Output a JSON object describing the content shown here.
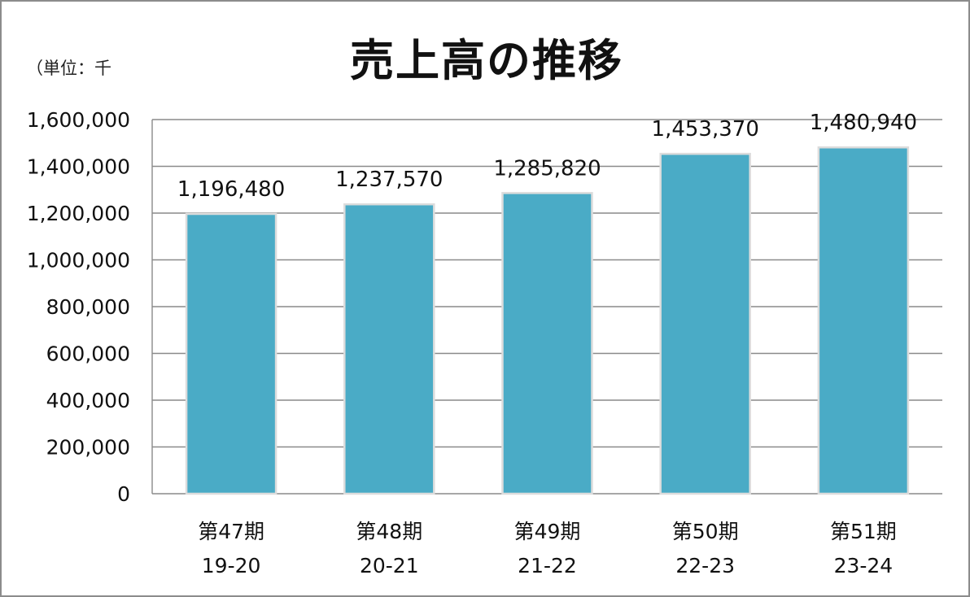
{
  "chart_data": {
    "type": "bar",
    "title": "売上高の推移",
    "unit_note": "（単位：千",
    "categories": [
      {
        "period": "第47期",
        "years": "19-20"
      },
      {
        "period": "第48期",
        "years": "20-21"
      },
      {
        "period": "第49期",
        "years": "21-22"
      },
      {
        "period": "第50期",
        "years": "22-23"
      },
      {
        "period": "第51期",
        "years": "23-24"
      }
    ],
    "values": [
      1196480,
      1237570,
      1285820,
      1453370,
      1480940
    ],
    "data_labels": [
      "1,196,480",
      "1,237,570",
      "1,285,820",
      "1,453,370",
      "1,480,940"
    ],
    "ylim": [
      0,
      1600000
    ],
    "yticks": [
      0,
      200000,
      400000,
      600000,
      800000,
      1000000,
      1200000,
      1400000,
      1600000
    ],
    "ytick_labels": [
      "0",
      "200,000",
      "400,000",
      "600,000",
      "800,000",
      "1,000,000",
      "1,200,000",
      "1,400,000",
      "1,600,000"
    ],
    "grid": true,
    "legend": "none",
    "colors": {
      "bar": "#4aabc6",
      "bar_edge": "#dcdcdc",
      "grid": "#8a8a8a",
      "axis": "#8a8a8a",
      "frame": "#8c8c8c"
    }
  }
}
